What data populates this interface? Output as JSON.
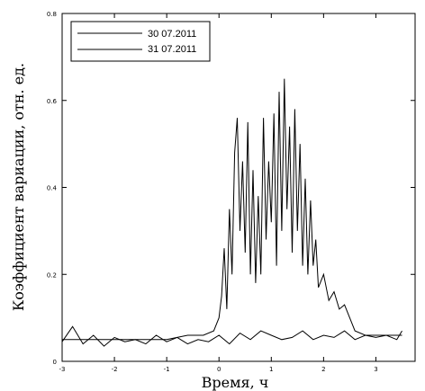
{
  "chart_data": {
    "type": "line",
    "title": "",
    "xlabel": "Время, ч",
    "ylabel": "Коэффициент вариации, отн. ед.",
    "xlim": [
      -3.0,
      3.75
    ],
    "ylim": [
      0,
      0.8
    ],
    "x_ticks": [
      "-3",
      "-2",
      "-1",
      "0",
      "1",
      "2",
      "3"
    ],
    "y_ticks": [
      "0",
      "0.2",
      "0.4",
      "0.6",
      "0.8"
    ],
    "legend_position": "top-left",
    "grid": false,
    "series": [
      {
        "name": "30 07.2011",
        "color": "#000000",
        "x": [
          -3.0,
          -2.6,
          -2.2,
          -1.8,
          -1.4,
          -1.0,
          -0.6,
          -0.3,
          -0.1,
          0.0,
          0.05,
          0.1,
          0.15,
          0.2,
          0.25,
          0.3,
          0.35,
          0.4,
          0.45,
          0.5,
          0.55,
          0.6,
          0.65,
          0.7,
          0.75,
          0.8,
          0.85,
          0.9,
          0.95,
          1.0,
          1.05,
          1.1,
          1.15,
          1.2,
          1.25,
          1.3,
          1.35,
          1.4,
          1.45,
          1.5,
          1.55,
          1.6,
          1.65,
          1.7,
          1.75,
          1.8,
          1.85,
          1.9,
          2.0,
          2.1,
          2.2,
          2.3,
          2.4,
          2.5,
          2.6,
          2.8,
          3.0,
          3.2,
          3.4,
          3.5
        ],
        "values": [
          0.05,
          0.05,
          0.05,
          0.05,
          0.05,
          0.05,
          0.06,
          0.06,
          0.07,
          0.1,
          0.15,
          0.26,
          0.12,
          0.35,
          0.2,
          0.48,
          0.56,
          0.3,
          0.46,
          0.25,
          0.55,
          0.2,
          0.44,
          0.18,
          0.38,
          0.2,
          0.56,
          0.28,
          0.46,
          0.32,
          0.57,
          0.22,
          0.62,
          0.3,
          0.65,
          0.35,
          0.54,
          0.25,
          0.58,
          0.3,
          0.5,
          0.22,
          0.42,
          0.2,
          0.37,
          0.22,
          0.28,
          0.17,
          0.2,
          0.14,
          0.16,
          0.12,
          0.13,
          0.1,
          0.07,
          0.06,
          0.06,
          0.06,
          0.06,
          0.06
        ]
      },
      {
        "name": "31 07.2011",
        "color": "#000000",
        "x": [
          -3.0,
          -2.8,
          -2.6,
          -2.4,
          -2.2,
          -2.0,
          -1.8,
          -1.6,
          -1.4,
          -1.2,
          -1.0,
          -0.8,
          -0.6,
          -0.4,
          -0.2,
          0.0,
          0.2,
          0.4,
          0.6,
          0.8,
          1.0,
          1.2,
          1.4,
          1.6,
          1.8,
          2.0,
          2.2,
          2.4,
          2.6,
          2.8,
          3.0,
          3.2,
          3.4,
          3.5
        ],
        "values": [
          0.045,
          0.08,
          0.04,
          0.06,
          0.035,
          0.055,
          0.045,
          0.05,
          0.04,
          0.06,
          0.045,
          0.055,
          0.04,
          0.05,
          0.045,
          0.06,
          0.04,
          0.065,
          0.05,
          0.07,
          0.06,
          0.05,
          0.055,
          0.07,
          0.05,
          0.06,
          0.055,
          0.07,
          0.05,
          0.06,
          0.055,
          0.06,
          0.05,
          0.07
        ]
      }
    ]
  }
}
